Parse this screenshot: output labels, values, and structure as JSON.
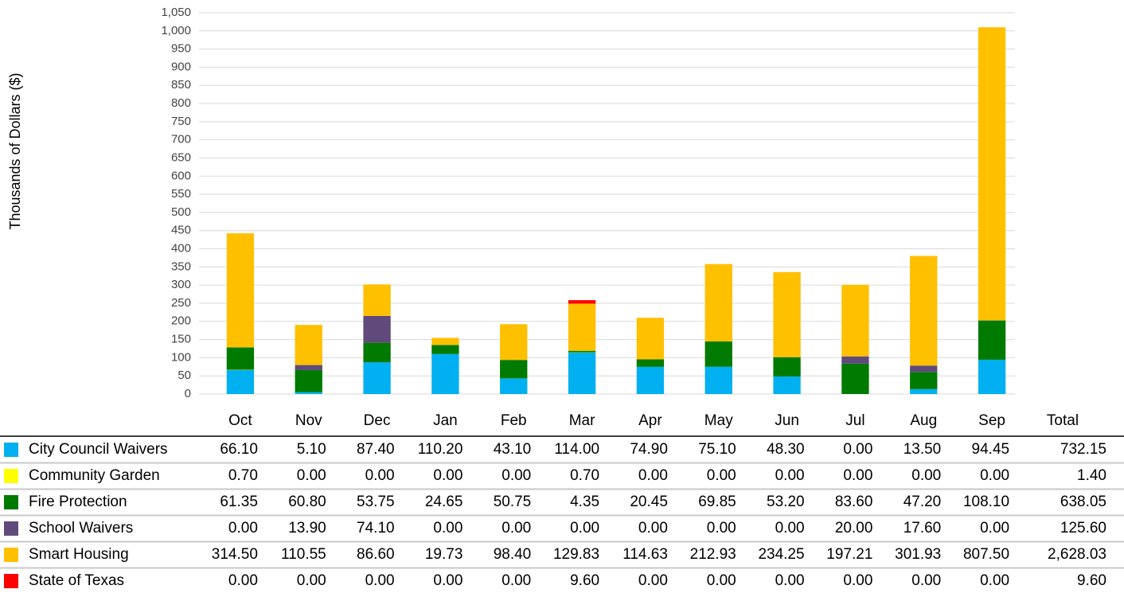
{
  "chart_data": {
    "type": "stacked_bar",
    "y_label": "Thousands of Dollars ($)",
    "categories": [
      "Oct",
      "Nov",
      "Dec",
      "Jan",
      "Feb",
      "Mar",
      "Apr",
      "May",
      "Jun",
      "Jul",
      "Aug",
      "Sep"
    ],
    "total_header": "Total",
    "ylim": [
      0,
      1050
    ],
    "yticks": [
      0,
      50,
      100,
      150,
      200,
      250,
      300,
      350,
      400,
      450,
      500,
      550,
      600,
      650,
      700,
      750,
      800,
      850,
      900,
      950,
      {
        "value": 1000,
        "label": "1,000"
      },
      {
        "value": 1050,
        "label": "1,050"
      }
    ],
    "grid": true,
    "series": [
      {
        "name": "City Council Waivers",
        "color": "#00b0f0",
        "values": [
          66.1,
          5.1,
          87.4,
          110.2,
          43.1,
          114,
          74.9,
          75.1,
          48.3,
          0,
          13.5,
          94.45
        ],
        "value_labels": [
          "66.10",
          "5.10",
          "87.40",
          "110.20",
          "43.10",
          "114.00",
          "74.90",
          "75.10",
          "48.30",
          "0.00",
          "13.50",
          "94.45"
        ],
        "total": 732.15,
        "total_label": "732.15"
      },
      {
        "name": "Community Garden",
        "color": "#ffff00",
        "values": [
          0.7,
          0,
          0,
          0,
          0,
          0.7,
          0,
          0,
          0,
          0,
          0,
          0
        ],
        "value_labels": [
          "0.70",
          "0.00",
          "0.00",
          "0.00",
          "0.00",
          "0.70",
          "0.00",
          "0.00",
          "0.00",
          "0.00",
          "0.00",
          "0.00"
        ],
        "total": 1.4,
        "total_label": "1.40"
      },
      {
        "name": "Fire Protection",
        "color": "#007a00",
        "values": [
          61.35,
          60.8,
          53.75,
          24.65,
          50.75,
          4.35,
          20.45,
          69.85,
          53.2,
          83.6,
          47.2,
          108.1
        ],
        "value_labels": [
          "61.35",
          "60.80",
          "53.75",
          "24.65",
          "50.75",
          "4.35",
          "20.45",
          "69.85",
          "53.20",
          "83.60",
          "47.20",
          "108.10"
        ],
        "total": 638.05,
        "total_label": "638.05"
      },
      {
        "name": "School Waivers",
        "color": "#604a7b",
        "values": [
          0,
          13.9,
          74.1,
          0,
          0,
          0,
          0,
          0,
          0,
          20,
          17.6,
          0
        ],
        "value_labels": [
          "0.00",
          "13.90",
          "74.10",
          "0.00",
          "0.00",
          "0.00",
          "0.00",
          "0.00",
          "0.00",
          "20.00",
          "17.60",
          "0.00"
        ],
        "total": 125.6,
        "total_label": "125.60"
      },
      {
        "name": "Smart Housing",
        "color": "#ffc000",
        "values": [
          314.5,
          110.55,
          86.6,
          19.73,
          98.4,
          129.83,
          114.63,
          212.93,
          234.25,
          197.21,
          301.93,
          807.5
        ],
        "value_labels": [
          "314.50",
          "110.55",
          "86.60",
          "19.73",
          "98.40",
          "129.83",
          "114.63",
          "212.93",
          "234.25",
          "197.21",
          "301.93",
          "807.50"
        ],
        "total": 2628.03,
        "total_label": "2,628.03"
      },
      {
        "name": "State of Texas",
        "color": "#ff0000",
        "values": [
          0,
          0,
          0,
          0,
          0,
          9.6,
          0,
          0,
          0,
          0,
          0,
          0
        ],
        "value_labels": [
          "0.00",
          "0.00",
          "0.00",
          "0.00",
          "0.00",
          "9.60",
          "0.00",
          "0.00",
          "0.00",
          "0.00",
          "0.00",
          "0.00"
        ],
        "total": 9.6,
        "total_label": "9.60"
      }
    ]
  }
}
